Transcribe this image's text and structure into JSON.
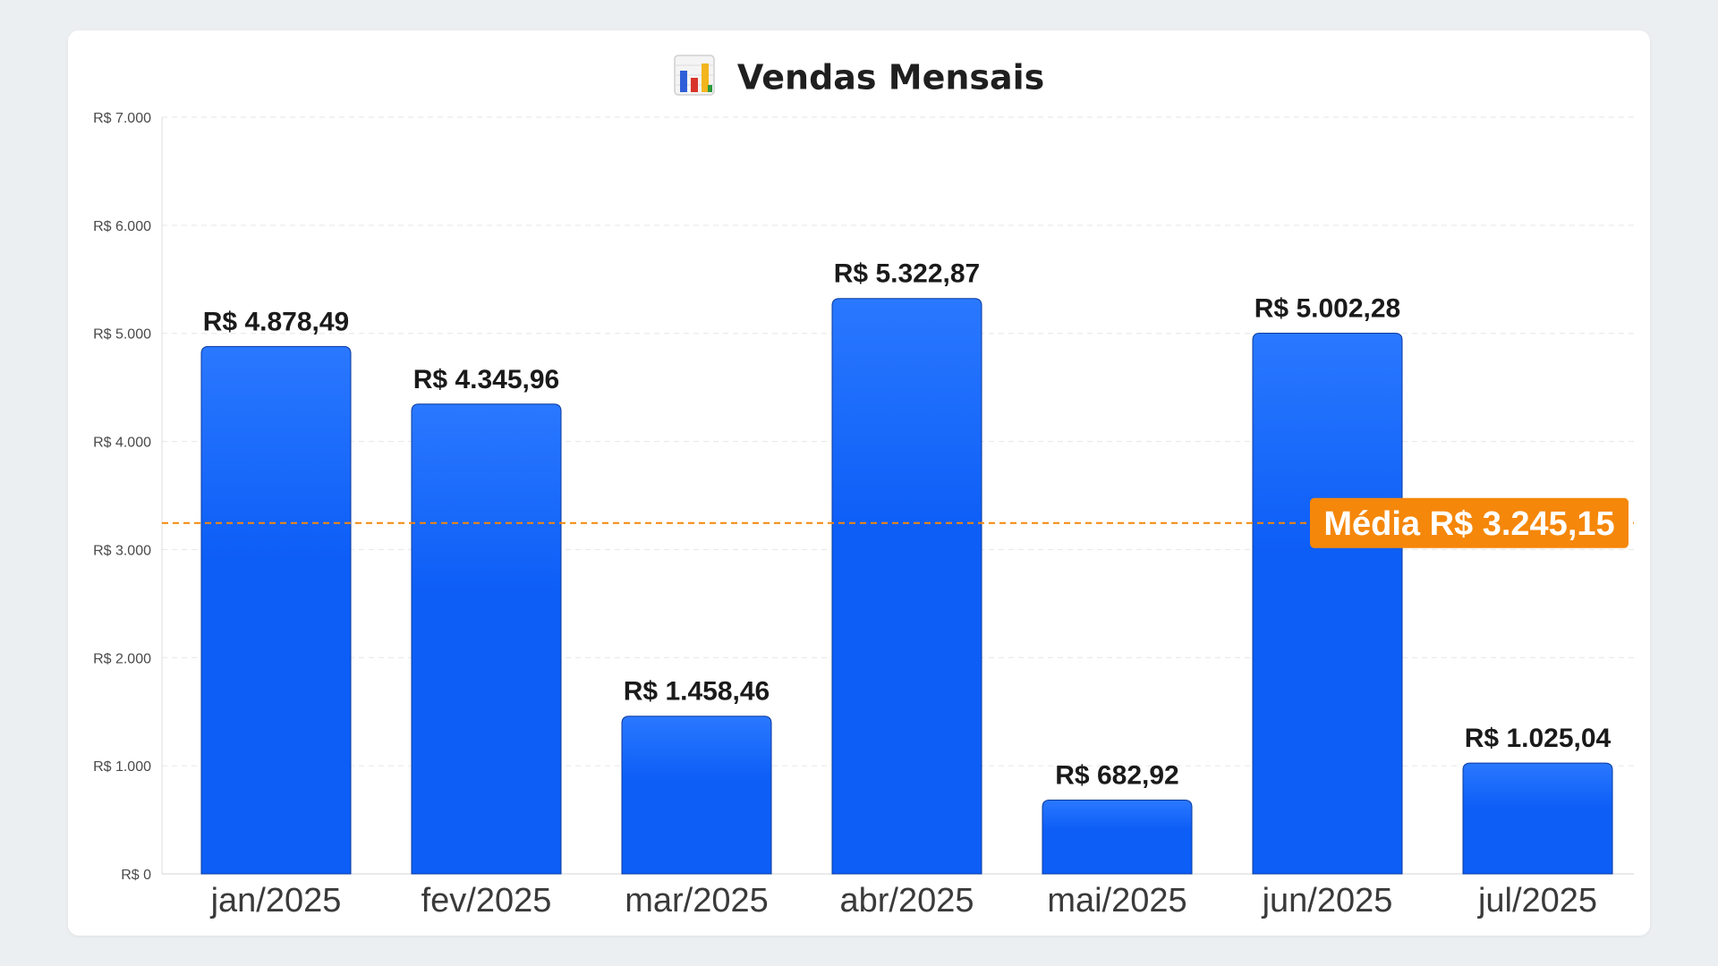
{
  "chart_data": {
    "type": "bar",
    "title": "Vendas Mensais",
    "title_icon": "bar-chart-icon",
    "categories": [
      "jan/2025",
      "fev/2025",
      "mar/2025",
      "abr/2025",
      "mai/2025",
      "jun/2025",
      "jul/2025"
    ],
    "values": [
      4878.49,
      4345.96,
      1458.46,
      5322.87,
      682.92,
      5002.28,
      1025.04
    ],
    "data_labels": [
      "R$ 4.878,49",
      "R$ 4.345,96",
      "R$ 1.458,46",
      "R$ 5.322,87",
      "R$ 682,92",
      "R$ 5.002,28",
      "R$ 1.025,04"
    ],
    "ylim": [
      0,
      7000
    ],
    "yticks": [
      0,
      1000,
      2000,
      3000,
      4000,
      5000,
      6000,
      7000
    ],
    "ytick_labels": [
      "R$ 0",
      "R$ 1.000",
      "R$ 2.000",
      "R$ 3.000",
      "R$ 4.000",
      "R$ 5.000",
      "R$ 6.000",
      "R$ 7.000"
    ],
    "grid": true,
    "bar_color": "#0d5ef7",
    "bar_color_top": "#2a78ff",
    "average": {
      "value": 3245.15,
      "label": "Média R$ 3.245,15",
      "color": "#f5870a"
    }
  }
}
